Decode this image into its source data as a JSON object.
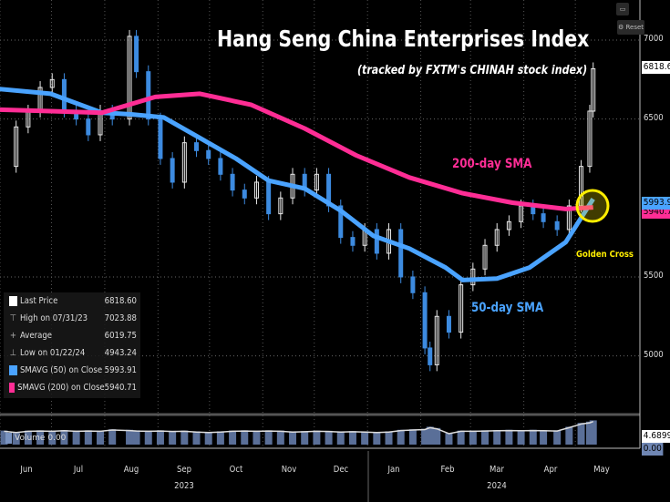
{
  "chart_data": {
    "type": "candlestick",
    "title": "Hang Seng China Enterprises Index",
    "subtitle": "(tracked by FXTM's CHINAH stock index)",
    "ylim": [
      4800,
      7100
    ],
    "yticks": [
      5000,
      5500,
      6500,
      7000
    ],
    "grid": true,
    "x_months": [
      "Jun",
      "Jul",
      "Aug",
      "Sep",
      "Oct",
      "Nov",
      "Dec",
      "Jan",
      "Feb",
      "Mar",
      "Apr",
      "May"
    ],
    "x_month_dates": [
      "2023-06-01",
      "2023-07-01",
      "2023-08-01",
      "2023-09-01",
      "2023-10-01",
      "2023-11-01",
      "2023-12-01",
      "2024-01-01",
      "2024-02-01",
      "2024-03-01",
      "2024-04-01",
      "2024-05-01"
    ],
    "x_years": [
      {
        "label": "2023",
        "date": "2023-09-01"
      },
      {
        "label": "2024",
        "date": "2024-03-01"
      }
    ],
    "price_weekly": {
      "dates": [
        "2023-05-19",
        "2023-05-26",
        "2023-06-02",
        "2023-06-09",
        "2023-06-16",
        "2023-06-23",
        "2023-06-30",
        "2023-07-07",
        "2023-07-14",
        "2023-07-21",
        "2023-07-31",
        "2023-08-04",
        "2023-08-11",
        "2023-08-18",
        "2023-08-25",
        "2023-09-01",
        "2023-09-08",
        "2023-09-15",
        "2023-09-22",
        "2023-09-29",
        "2023-10-06",
        "2023-10-13",
        "2023-10-20",
        "2023-10-27",
        "2023-11-03",
        "2023-11-10",
        "2023-11-17",
        "2023-11-24",
        "2023-12-01",
        "2023-12-08",
        "2023-12-15",
        "2023-12-22",
        "2023-12-29",
        "2024-01-05",
        "2024-01-12",
        "2024-01-19",
        "2024-01-22",
        "2024-01-26",
        "2024-02-02",
        "2024-02-09",
        "2024-02-16",
        "2024-02-23",
        "2024-03-01",
        "2024-03-08",
        "2024-03-15",
        "2024-03-22",
        "2024-03-28",
        "2024-04-05",
        "2024-04-12",
        "2024-04-19",
        "2024-04-24",
        "2024-04-26"
      ],
      "close": [
        6200,
        6450,
        6550,
        6700,
        6750,
        6550,
        6500,
        6400,
        6550,
        6500,
        7023.88,
        6800,
        6500,
        6250,
        6100,
        6350,
        6300,
        6250,
        6150,
        6050,
        6000,
        6100,
        5900,
        6000,
        6150,
        6050,
        6150,
        5950,
        5750,
        5700,
        5800,
        5650,
        5800,
        5500,
        5400,
        5050,
        4943.24,
        5250,
        5150,
        5450,
        5550,
        5700,
        5800,
        5850,
        5950,
        5900,
        5850,
        5800,
        5950,
        6200,
        6550,
        6818.6
      ]
    },
    "series": [
      {
        "name": "SMAVG (50) on Close",
        "color": "#4aa3ff",
        "dates": [
          "2023-05-16",
          "2023-06-15",
          "2023-07-15",
          "2023-08-01",
          "2023-08-20",
          "2023-09-10",
          "2023-10-01",
          "2023-10-20",
          "2023-11-10",
          "2023-12-01",
          "2023-12-20",
          "2024-01-10",
          "2024-01-31",
          "2024-02-10",
          "2024-03-01",
          "2024-03-20",
          "2024-04-10",
          "2024-04-26"
        ],
        "values": [
          6690,
          6660,
          6540,
          6530,
          6510,
          6380,
          6250,
          6110,
          6060,
          5920,
          5760,
          5680,
          5560,
          5480,
          5490,
          5560,
          5720,
          5993.91
        ]
      },
      {
        "name": "SMAVG (200) on Close",
        "color": "#ff2d95",
        "dates": [
          "2023-05-16",
          "2023-06-15",
          "2023-07-15",
          "2023-08-15",
          "2023-09-10",
          "2023-10-10",
          "2023-11-10",
          "2023-12-10",
          "2024-01-10",
          "2024-02-10",
          "2024-03-10",
          "2024-04-10",
          "2024-04-26"
        ],
        "values": [
          6560,
          6550,
          6540,
          6640,
          6660,
          6590,
          6440,
          6270,
          6130,
          6030,
          5970,
          5930,
          5940.71
        ]
      }
    ],
    "volume": {
      "label": "Volume",
      "value": "0.00",
      "axis_max": "4.6899",
      "axis_min": "0.00",
      "relative_weekly": [
        0.55,
        0.5,
        0.55,
        0.56,
        0.55,
        0.57,
        0.55,
        0.56,
        0.55,
        0.6,
        0.58,
        0.56,
        0.55,
        0.56,
        0.54,
        0.55,
        0.52,
        0.5,
        0.52,
        0.55,
        0.56,
        0.55,
        0.56,
        0.55,
        0.52,
        0.53,
        0.55,
        0.54,
        0.52,
        0.53,
        0.52,
        0.5,
        0.52,
        0.58,
        0.6,
        0.62,
        0.7,
        0.65,
        0.45,
        0.55,
        0.55,
        0.56,
        0.57,
        0.58,
        0.57,
        0.58,
        0.57,
        0.56,
        0.7,
        0.85,
        0.9,
        0.95
      ]
    }
  },
  "legend": [
    {
      "label": "Last Price",
      "value": "6818.60",
      "icon": "square-white"
    },
    {
      "label": "High on 07/31/23",
      "value": "7023.88",
      "icon": "high-marker"
    },
    {
      "label": "Average",
      "value": "6019.75",
      "icon": "plus-marker"
    },
    {
      "label": "Low on 01/22/24",
      "value": "4943.24",
      "icon": "low-marker"
    },
    {
      "label": "SMAVG (50)  on Close",
      "value": "5993.91",
      "color": "#4aa3ff"
    },
    {
      "label": "SMAVG (200)  on Close",
      "value": "5940.71",
      "color": "#ff2d95"
    }
  ],
  "axis_tags": {
    "last": "6818.60",
    "sma50": "5993.91",
    "sma200": "5940.71"
  },
  "annotations": {
    "sma200": "200-day SMA",
    "sma50": "50-day SMA",
    "cross": "Golden Cross"
  },
  "controls": {
    "reset": "Reset"
  },
  "colors": {
    "sma50": "#4aa3ff",
    "sma200": "#ff2d95",
    "golden_cross": "#ffee00",
    "background": "#000000"
  }
}
